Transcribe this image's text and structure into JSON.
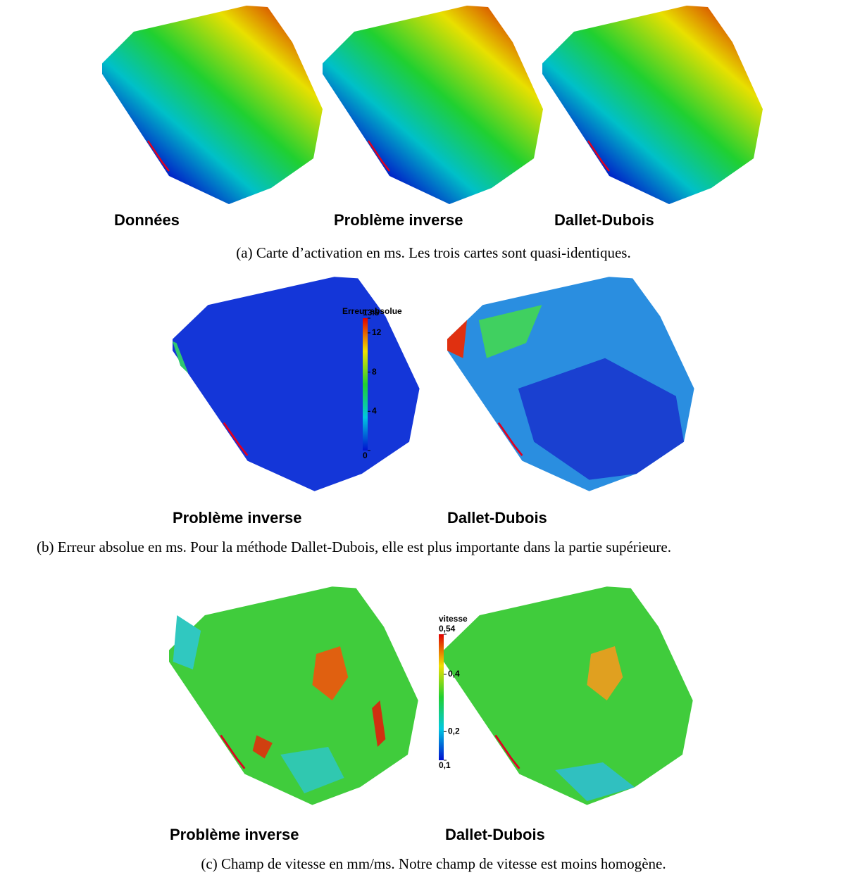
{
  "panels": [
    {
      "images": [
        {
          "label": "Données"
        },
        {
          "label": "Problème inverse"
        },
        {
          "label": "Dallet-Dubois"
        }
      ],
      "caption": "(a) Carte d’activation en ms. Les trois cartes sont quasi-identiques."
    },
    {
      "images": [
        {
          "label": "Problème inverse"
        },
        {
          "label": "Dallet-Dubois"
        }
      ],
      "colorbar": {
        "title": "Erreur absolue",
        "ticks": [
          0,
          4,
          8,
          12,
          13.5
        ]
      },
      "caption": "(b) Erreur absolue en ms. Pour la méthode Dallet-Dubois, elle est plus importante dans la partie supérieure."
    },
    {
      "images": [
        {
          "label": "Problème inverse"
        },
        {
          "label": "Dallet-Dubois"
        }
      ],
      "colorbar": {
        "title": "vitesse",
        "ticks": [
          {
            "value": 0.1,
            "label": "0,1"
          },
          {
            "value": 0.2,
            "label": "0,2"
          },
          {
            "value": 0.4,
            "label": "0,4"
          },
          {
            "value": 0.54,
            "label": "0,54"
          }
        ]
      },
      "caption": "(c) Champ de vitesse en mm/ms. Notre champ de vitesse est moins homogène."
    }
  ]
}
